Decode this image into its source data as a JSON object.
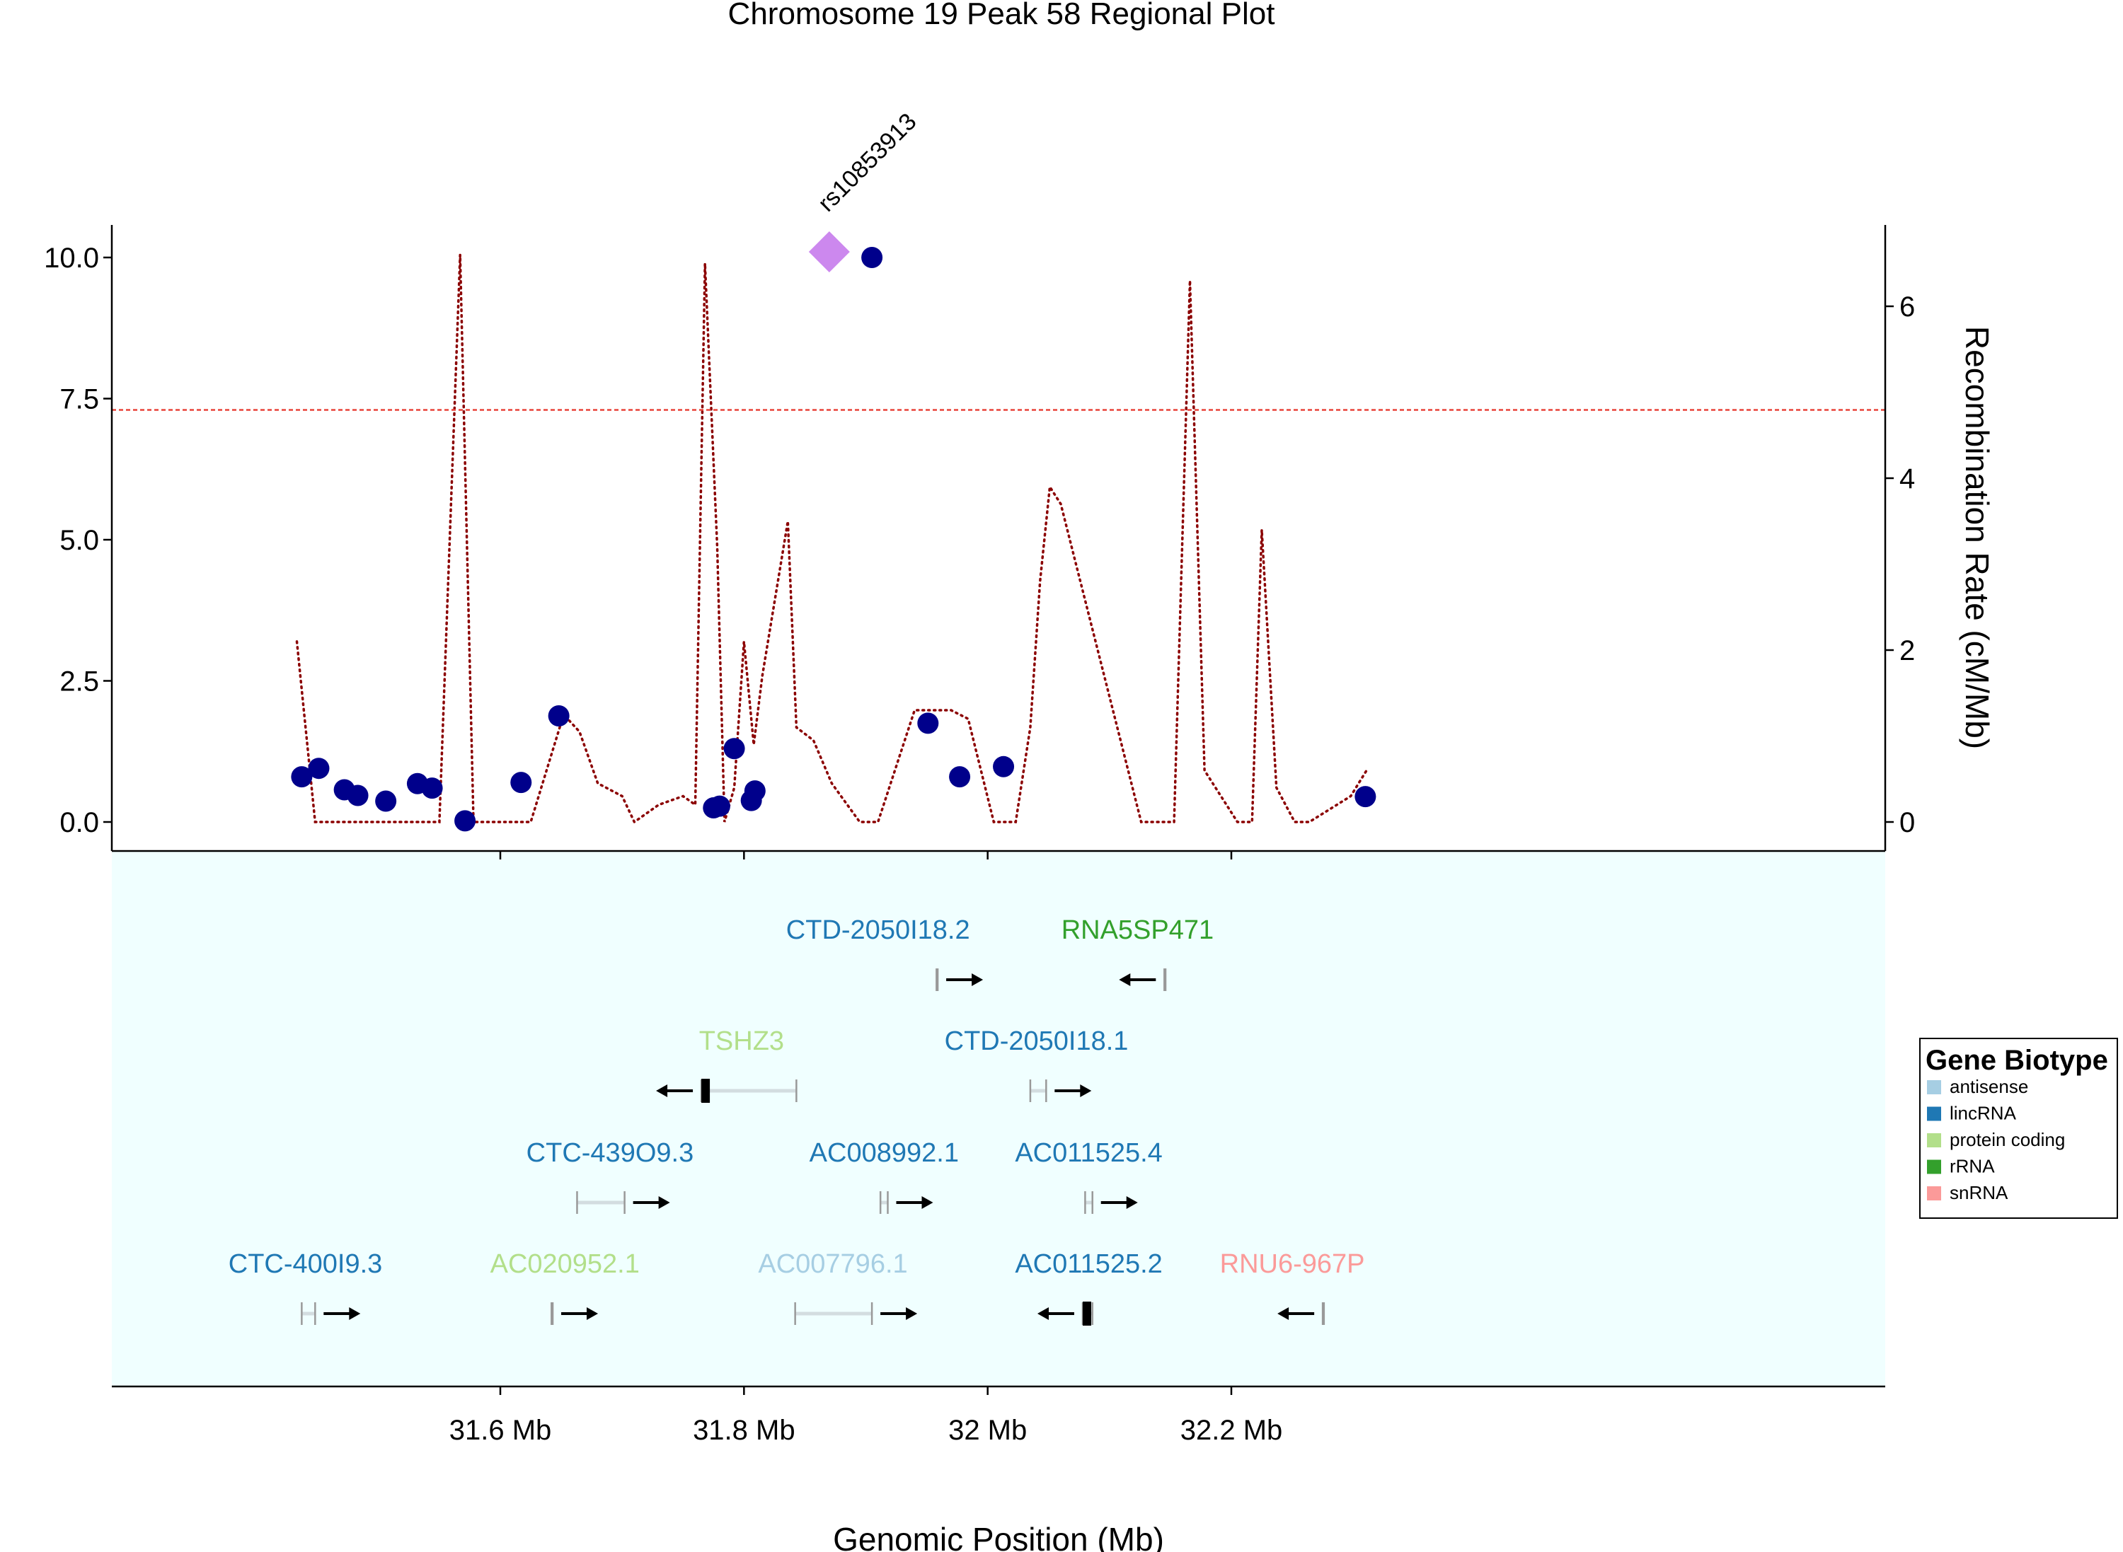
{
  "chart_data": {
    "type": "scatter",
    "title": "Chromosome 19 Peak 58 Regional Plot",
    "xlabel": "Genomic Position (Mb)",
    "y2label": "Recombination Rate (cM/Mb)",
    "xlim": [
      31.39,
      32.35
    ],
    "ylim": [
      -0.5,
      10.6
    ],
    "y2lim": [
      -0.3,
      6.9
    ],
    "x_ticks": [
      31.6,
      31.8,
      32.0,
      32.2
    ],
    "x_tick_labels": [
      "31.6 Mb",
      "31.8 Mb",
      "32 Mb",
      "32.2 Mb"
    ],
    "y_ticks": [
      0,
      2.5,
      5,
      7.5,
      10
    ],
    "y_tick_labels": [
      "0.0",
      "2.5",
      "5.0",
      "7.5",
      "10.0"
    ],
    "y2_ticks": [
      0,
      2,
      4,
      6
    ],
    "y2_tick_labels": [
      "0",
      "2",
      "4",
      "6"
    ],
    "threshold": 7.3,
    "colors": {
      "points": "#00008B",
      "lead_snp": "#CC88EE",
      "recombination": "#8B0000",
      "threshold": "#E8443A",
      "gene_panel": "#F0FFFF",
      "gene_line": "#D3DDE0"
    },
    "lead_snp": {
      "x": 31.87,
      "y": 10.1,
      "label": "rs10853913"
    },
    "points": [
      {
        "x": 31.437,
        "y": 0.8
      },
      {
        "x": 31.451,
        "y": 0.95
      },
      {
        "x": 31.472,
        "y": 0.57
      },
      {
        "x": 31.483,
        "y": 0.47
      },
      {
        "x": 31.506,
        "y": 0.37
      },
      {
        "x": 31.532,
        "y": 0.68
      },
      {
        "x": 31.544,
        "y": 0.6
      },
      {
        "x": 31.571,
        "y": 0.02
      },
      {
        "x": 31.617,
        "y": 0.7
      },
      {
        "x": 31.648,
        "y": 1.88
      },
      {
        "x": 31.775,
        "y": 0.25
      },
      {
        "x": 31.78,
        "y": 0.28
      },
      {
        "x": 31.792,
        "y": 1.3
      },
      {
        "x": 31.806,
        "y": 0.38
      },
      {
        "x": 31.809,
        "y": 0.55
      },
      {
        "x": 31.905,
        "y": 10.0
      },
      {
        "x": 31.951,
        "y": 1.75
      },
      {
        "x": 31.977,
        "y": 0.8
      },
      {
        "x": 32.013,
        "y": 0.98
      },
      {
        "x": 32.31,
        "y": 0.45
      }
    ],
    "recombination": {
      "x": [
        31.433,
        31.448,
        31.55,
        31.567,
        31.578,
        31.592,
        31.625,
        31.652,
        31.665,
        31.68,
        31.7,
        31.71,
        31.73,
        31.75,
        31.76,
        31.768,
        31.778,
        31.784,
        31.792,
        31.8,
        31.808,
        31.815,
        31.836,
        31.843,
        31.857,
        31.872,
        31.895,
        31.91,
        31.94,
        31.97,
        31.984,
        32.005,
        32.023,
        32.035,
        32.043,
        32.051,
        32.06,
        32.126,
        32.142,
        32.153,
        32.166,
        32.178,
        32.205,
        32.217,
        32.225,
        32.237,
        32.252,
        32.264,
        32.298,
        32.311
      ],
      "y": [
        2.1,
        0,
        0,
        6.6,
        0,
        0,
        0,
        1.25,
        1.05,
        0.45,
        0.3,
        0,
        0.2,
        0.3,
        0.2,
        6.5,
        3.2,
        0,
        0.4,
        2.1,
        0.9,
        1.7,
        3.5,
        1.1,
        0.95,
        0.45,
        0,
        0,
        1.3,
        1.3,
        1.2,
        0,
        0,
        1.1,
        2.8,
        3.9,
        3.7,
        0,
        0,
        0,
        6.3,
        0.6,
        0,
        0,
        3.4,
        0.4,
        0,
        0,
        0.3,
        0.6
      ]
    },
    "legend": {
      "title": "Gene Biotype",
      "items": [
        {
          "label": "antisense",
          "color": "#A6CEE3"
        },
        {
          "label": "lincRNA",
          "color": "#1F78B4"
        },
        {
          "label": "protein coding",
          "color": "#B2DF8A"
        },
        {
          "label": "rRNA",
          "color": "#33A02C"
        },
        {
          "label": "snRNA",
          "color": "#FB9A99"
        }
      ]
    },
    "genes": [
      {
        "name": "CTD-2050I18.2",
        "biotype": "lincRNA",
        "row": 4,
        "start": 31.958,
        "end": 31.959,
        "strand": "+",
        "label_x": 31.91
      },
      {
        "name": "RNA5SP471",
        "biotype": "rRNA",
        "row": 4,
        "start": 32.145,
        "end": 32.146,
        "strand": "-",
        "label_x": 32.123
      },
      {
        "name": "TSHZ3",
        "biotype": "protein coding",
        "row": 3,
        "start": 31.765,
        "end": 31.843,
        "strand": "-",
        "label_x": 31.798
      },
      {
        "name": "CTD-2050I18.1",
        "biotype": "lincRNA",
        "row": 3,
        "start": 32.035,
        "end": 32.048,
        "strand": "+",
        "label_x": 32.04
      },
      {
        "name": "CTC-439O9.3",
        "biotype": "lincRNA",
        "row": 2,
        "start": 31.663,
        "end": 31.702,
        "strand": "+",
        "label_x": 31.69
      },
      {
        "name": "AC008992.1",
        "biotype": "lincRNA",
        "row": 2,
        "start": 31.912,
        "end": 31.918,
        "strand": "+",
        "label_x": 31.915
      },
      {
        "name": "AC011525.4",
        "biotype": "lincRNA",
        "row": 2,
        "start": 32.08,
        "end": 32.086,
        "strand": "+",
        "label_x": 32.083
      },
      {
        "name": "CTC-400I9.3",
        "biotype": "lincRNA",
        "row": 1,
        "start": 31.437,
        "end": 31.448,
        "strand": "+",
        "label_x": 31.44
      },
      {
        "name": "AC020952.1",
        "biotype": "protein coding",
        "row": 1,
        "start": 31.642,
        "end": 31.643,
        "strand": "+",
        "label_x": 31.653
      },
      {
        "name": "AC007796.1",
        "biotype": "antisense",
        "row": 1,
        "start": 31.842,
        "end": 31.905,
        "strand": "+",
        "label_x": 31.873
      },
      {
        "name": "AC011525.2",
        "biotype": "lincRNA",
        "row": 1,
        "start": 32.078,
        "end": 32.086,
        "strand": "-",
        "label_x": 32.083
      },
      {
        "name": "RNU6-967P",
        "biotype": "snRNA",
        "row": 1,
        "start": 32.275,
        "end": 32.276,
        "strand": "-",
        "label_x": 32.25
      }
    ]
  }
}
